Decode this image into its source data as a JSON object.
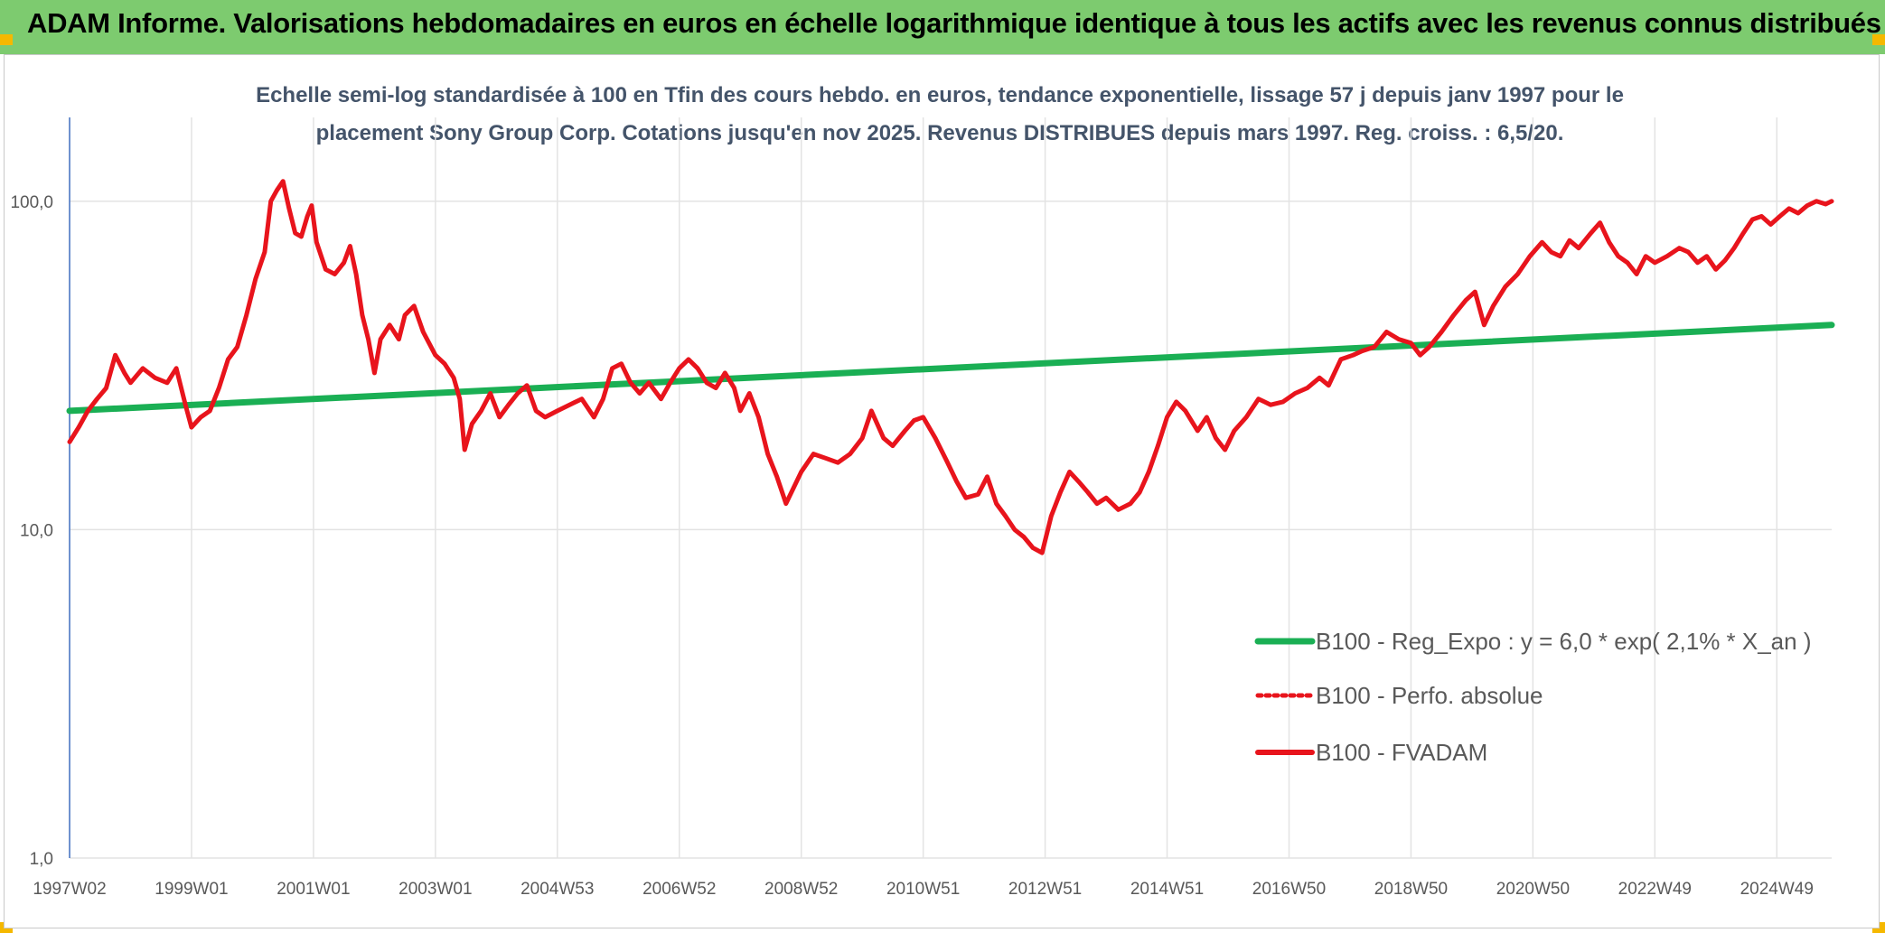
{
  "header": {
    "title": "ADAM Informe. Valorisations hebdomadaires en euros en échelle logarithmique identique à tous les actifs avec les revenus connus distribués"
  },
  "colors": {
    "banner": "#7dcb6f",
    "corner_marker": "#f5b800",
    "subtitle_text": "#44546a",
    "series_fvadam": "#e8141c",
    "series_regression": "#1aaf54",
    "gridline": "#e3e3e3",
    "y_axis_line": "#4472c4"
  },
  "chart_data": {
    "type": "line",
    "title_line1": "Echelle semi-log standardisée à 100 en Tfin des cours hebdo. en euros, tendance exponentielle, lissage 57 j depuis janv 1997 pour le",
    "title_line2": "placement Sony Group Corp. Cotations jusqu'en nov 2025. Revenus DISTRIBUES depuis mars 1997. Reg. croiss. : 6,5/20.",
    "y_scale": "log",
    "ylim": [
      1,
      180
    ],
    "xlim": [
      1997.0,
      2025.9
    ],
    "grid": true,
    "legend_position": "right",
    "y_ticks": [
      {
        "value": 1,
        "label": "1,0"
      },
      {
        "value": 10,
        "label": "10,0"
      },
      {
        "value": 100,
        "label": "100,0"
      }
    ],
    "x_ticks": [
      {
        "value": 1997.0,
        "label": "1997W02"
      },
      {
        "value": 1999.0,
        "label": "1999W01"
      },
      {
        "value": 2001.0,
        "label": "2001W01"
      },
      {
        "value": 2003.0,
        "label": "2003W01"
      },
      {
        "value": 2005.0,
        "label": "2004W53"
      },
      {
        "value": 2007.0,
        "label": "2006W52"
      },
      {
        "value": 2009.0,
        "label": "2008W52"
      },
      {
        "value": 2011.0,
        "label": "2010W51"
      },
      {
        "value": 2013.0,
        "label": "2012W51"
      },
      {
        "value": 2015.0,
        "label": "2014W51"
      },
      {
        "value": 2017.0,
        "label": "2016W50"
      },
      {
        "value": 2019.0,
        "label": "2018W50"
      },
      {
        "value": 2021.0,
        "label": "2020W50"
      },
      {
        "value": 2023.0,
        "label": "2022W49"
      },
      {
        "value": 2025.0,
        "label": "2024W49"
      }
    ],
    "series": [
      {
        "name": "B100 - Reg_Expo : y = 6,0 * exp( 2,1% *  X_an )",
        "style": "solid-thick",
        "color": "#1aaf54",
        "points": [
          [
            1997.0,
            23.0
          ],
          [
            2025.9,
            42.0
          ]
        ]
      },
      {
        "name": "B100 - Perfo. absolue",
        "style": "dotted",
        "color": "#e8141c",
        "points": []
      },
      {
        "name": "B100 - FVADAM",
        "style": "solid",
        "color": "#e8141c",
        "points": [
          [
            1997.0,
            18.5
          ],
          [
            1997.15,
            20.5
          ],
          [
            1997.3,
            23.0
          ],
          [
            1997.45,
            25.0
          ],
          [
            1997.6,
            27.0
          ],
          [
            1997.75,
            34.0
          ],
          [
            1997.9,
            30.0
          ],
          [
            1998.0,
            28.0
          ],
          [
            1998.2,
            31.0
          ],
          [
            1998.4,
            29.0
          ],
          [
            1998.6,
            28.0
          ],
          [
            1998.75,
            31.0
          ],
          [
            1998.9,
            24.0
          ],
          [
            1999.0,
            20.5
          ],
          [
            1999.15,
            22.0
          ],
          [
            1999.3,
            23.0
          ],
          [
            1999.45,
            27.0
          ],
          [
            1999.6,
            33.0
          ],
          [
            1999.75,
            36.0
          ],
          [
            1999.9,
            45.0
          ],
          [
            2000.05,
            58.0
          ],
          [
            2000.2,
            70.0
          ],
          [
            2000.3,
            100.0
          ],
          [
            2000.4,
            108.0
          ],
          [
            2000.5,
            115.0
          ],
          [
            2000.6,
            95.0
          ],
          [
            2000.7,
            80.0
          ],
          [
            2000.8,
            78.0
          ],
          [
            2000.9,
            90.0
          ],
          [
            2000.97,
            97.0
          ],
          [
            2001.05,
            75.0
          ],
          [
            2001.2,
            62.0
          ],
          [
            2001.35,
            60.0
          ],
          [
            2001.5,
            65.0
          ],
          [
            2001.6,
            73.0
          ],
          [
            2001.7,
            60.0
          ],
          [
            2001.8,
            45.0
          ],
          [
            2001.9,
            38.0
          ],
          [
            2002.0,
            30.0
          ],
          [
            2002.1,
            38.0
          ],
          [
            2002.25,
            42.0
          ],
          [
            2002.4,
            38.0
          ],
          [
            2002.5,
            45.0
          ],
          [
            2002.65,
            48.0
          ],
          [
            2002.8,
            40.0
          ],
          [
            2003.0,
            34.0
          ],
          [
            2003.15,
            32.0
          ],
          [
            2003.3,
            29.0
          ],
          [
            2003.4,
            25.0
          ],
          [
            2003.48,
            17.5
          ],
          [
            2003.6,
            21.0
          ],
          [
            2003.75,
            23.0
          ],
          [
            2003.9,
            26.0
          ],
          [
            2004.05,
            22.0
          ],
          [
            2004.2,
            24.0
          ],
          [
            2004.35,
            26.0
          ],
          [
            2004.5,
            27.5
          ],
          [
            2004.65,
            23.0
          ],
          [
            2004.8,
            22.0
          ],
          [
            2005.0,
            23.0
          ],
          [
            2005.2,
            24.0
          ],
          [
            2005.4,
            25.0
          ],
          [
            2005.6,
            22.0
          ],
          [
            2005.75,
            25.0
          ],
          [
            2005.9,
            31.0
          ],
          [
            2006.05,
            32.0
          ],
          [
            2006.2,
            28.0
          ],
          [
            2006.35,
            26.0
          ],
          [
            2006.5,
            28.0
          ],
          [
            2006.7,
            25.0
          ],
          [
            2006.85,
            28.0
          ],
          [
            2007.0,
            31.0
          ],
          [
            2007.15,
            33.0
          ],
          [
            2007.3,
            31.0
          ],
          [
            2007.45,
            28.0
          ],
          [
            2007.6,
            27.0
          ],
          [
            2007.75,
            30.0
          ],
          [
            2007.9,
            27.0
          ],
          [
            2008.0,
            23.0
          ],
          [
            2008.15,
            26.0
          ],
          [
            2008.3,
            22.0
          ],
          [
            2008.45,
            17.0
          ],
          [
            2008.6,
            14.5
          ],
          [
            2008.75,
            12.0
          ],
          [
            2009.0,
            15.0
          ],
          [
            2009.2,
            17.0
          ],
          [
            2009.4,
            16.5
          ],
          [
            2009.6,
            16.0
          ],
          [
            2009.8,
            17.0
          ],
          [
            2010.0,
            19.0
          ],
          [
            2010.15,
            23.0
          ],
          [
            2010.35,
            19.0
          ],
          [
            2010.5,
            18.0
          ],
          [
            2010.7,
            20.0
          ],
          [
            2010.85,
            21.5
          ],
          [
            2011.0,
            22.0
          ],
          [
            2011.2,
            19.0
          ],
          [
            2011.4,
            16.0
          ],
          [
            2011.55,
            14.0
          ],
          [
            2011.7,
            12.5
          ],
          [
            2011.9,
            12.8
          ],
          [
            2012.05,
            14.5
          ],
          [
            2012.2,
            12.0
          ],
          [
            2012.35,
            11.0
          ],
          [
            2012.5,
            10.0
          ],
          [
            2012.65,
            9.5
          ],
          [
            2012.8,
            8.8
          ],
          [
            2012.95,
            8.5
          ],
          [
            2013.1,
            11.0
          ],
          [
            2013.25,
            13.0
          ],
          [
            2013.4,
            15.0
          ],
          [
            2013.55,
            14.0
          ],
          [
            2013.7,
            13.0
          ],
          [
            2013.85,
            12.0
          ],
          [
            2014.0,
            12.5
          ],
          [
            2014.2,
            11.5
          ],
          [
            2014.4,
            12.0
          ],
          [
            2014.55,
            13.0
          ],
          [
            2014.7,
            15.0
          ],
          [
            2014.85,
            18.0
          ],
          [
            2015.0,
            22.0
          ],
          [
            2015.15,
            24.5
          ],
          [
            2015.3,
            23.0
          ],
          [
            2015.5,
            20.0
          ],
          [
            2015.65,
            22.0
          ],
          [
            2015.8,
            19.0
          ],
          [
            2015.95,
            17.5
          ],
          [
            2016.1,
            20.0
          ],
          [
            2016.3,
            22.0
          ],
          [
            2016.5,
            25.0
          ],
          [
            2016.7,
            24.0
          ],
          [
            2016.9,
            24.5
          ],
          [
            2017.1,
            26.0
          ],
          [
            2017.3,
            27.0
          ],
          [
            2017.5,
            29.0
          ],
          [
            2017.65,
            27.5
          ],
          [
            2017.85,
            33.0
          ],
          [
            2018.05,
            34.0
          ],
          [
            2018.2,
            35.0
          ],
          [
            2018.4,
            36.0
          ],
          [
            2018.6,
            40.0
          ],
          [
            2018.8,
            38.0
          ],
          [
            2019.0,
            37.0
          ],
          [
            2019.15,
            34.0
          ],
          [
            2019.3,
            36.0
          ],
          [
            2019.5,
            40.0
          ],
          [
            2019.7,
            45.0
          ],
          [
            2019.9,
            50.0
          ],
          [
            2020.05,
            53.0
          ],
          [
            2020.2,
            42.0
          ],
          [
            2020.35,
            48.0
          ],
          [
            2020.55,
            55.0
          ],
          [
            2020.75,
            60.0
          ],
          [
            2020.95,
            68.0
          ],
          [
            2021.15,
            75.0
          ],
          [
            2021.3,
            70.0
          ],
          [
            2021.45,
            68.0
          ],
          [
            2021.6,
            76.0
          ],
          [
            2021.75,
            72.0
          ],
          [
            2021.95,
            80.0
          ],
          [
            2022.1,
            86.0
          ],
          [
            2022.25,
            75.0
          ],
          [
            2022.4,
            68.0
          ],
          [
            2022.55,
            65.0
          ],
          [
            2022.7,
            60.0
          ],
          [
            2022.85,
            68.0
          ],
          [
            2023.0,
            65.0
          ],
          [
            2023.2,
            68.0
          ],
          [
            2023.4,
            72.0
          ],
          [
            2023.55,
            70.0
          ],
          [
            2023.7,
            65.0
          ],
          [
            2023.85,
            68.0
          ],
          [
            2024.0,
            62.0
          ],
          [
            2024.15,
            66.0
          ],
          [
            2024.3,
            72.0
          ],
          [
            2024.45,
            80.0
          ],
          [
            2024.6,
            88.0
          ],
          [
            2024.75,
            90.0
          ],
          [
            2024.9,
            85.0
          ],
          [
            2025.05,
            90.0
          ],
          [
            2025.2,
            95.0
          ],
          [
            2025.35,
            92.0
          ],
          [
            2025.5,
            97.0
          ],
          [
            2025.65,
            100.0
          ],
          [
            2025.8,
            98.0
          ],
          [
            2025.9,
            100.0
          ]
        ]
      }
    ]
  }
}
